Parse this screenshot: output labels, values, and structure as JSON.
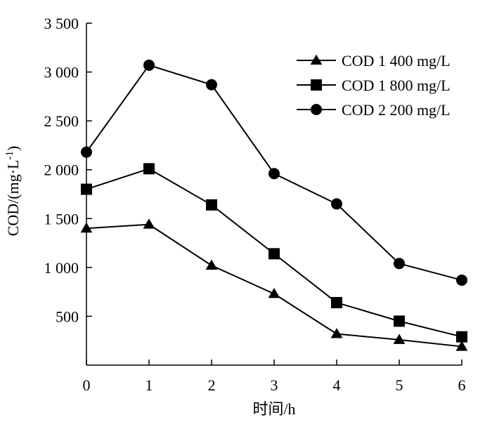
{
  "chart_data": {
    "type": "line",
    "title": "",
    "xlabel": "时间/h",
    "ylabel_main": "COD/(mg·L",
    "ylabel_sup": "-1",
    "ylabel_close": ")",
    "xlim": [
      0,
      6
    ],
    "ylim": [
      0,
      3500
    ],
    "xticks": [
      0,
      1,
      2,
      3,
      4,
      5,
      6
    ],
    "xtick_labels": [
      "0",
      "1",
      "2",
      "3",
      "4",
      "5",
      "6"
    ],
    "yticks": [
      500,
      1000,
      1500,
      2000,
      2500,
      3000,
      3500
    ],
    "ytick_labels": [
      "500",
      "1 000",
      "1 500",
      "2 000",
      "2 500",
      "3 000",
      "3 500"
    ],
    "grid": false,
    "legend_position": "top-right",
    "series": [
      {
        "name": "COD 1 400 mg/L",
        "marker": "triangle",
        "x": [
          0,
          1,
          2,
          3,
          4,
          5,
          6
        ],
        "values": [
          1400,
          1440,
          1020,
          730,
          320,
          260,
          190
        ]
      },
      {
        "name": "COD 1 800 mg/L",
        "marker": "square",
        "x": [
          0,
          1,
          2,
          3,
          4,
          5,
          6
        ],
        "values": [
          1800,
          2010,
          1640,
          1140,
          640,
          450,
          290
        ]
      },
      {
        "name": "COD 2 200 mg/L",
        "marker": "circle",
        "x": [
          0,
          1,
          2,
          3,
          4,
          5,
          6
        ],
        "values": [
          2180,
          3070,
          2870,
          1960,
          1650,
          1040,
          870
        ]
      }
    ]
  }
}
